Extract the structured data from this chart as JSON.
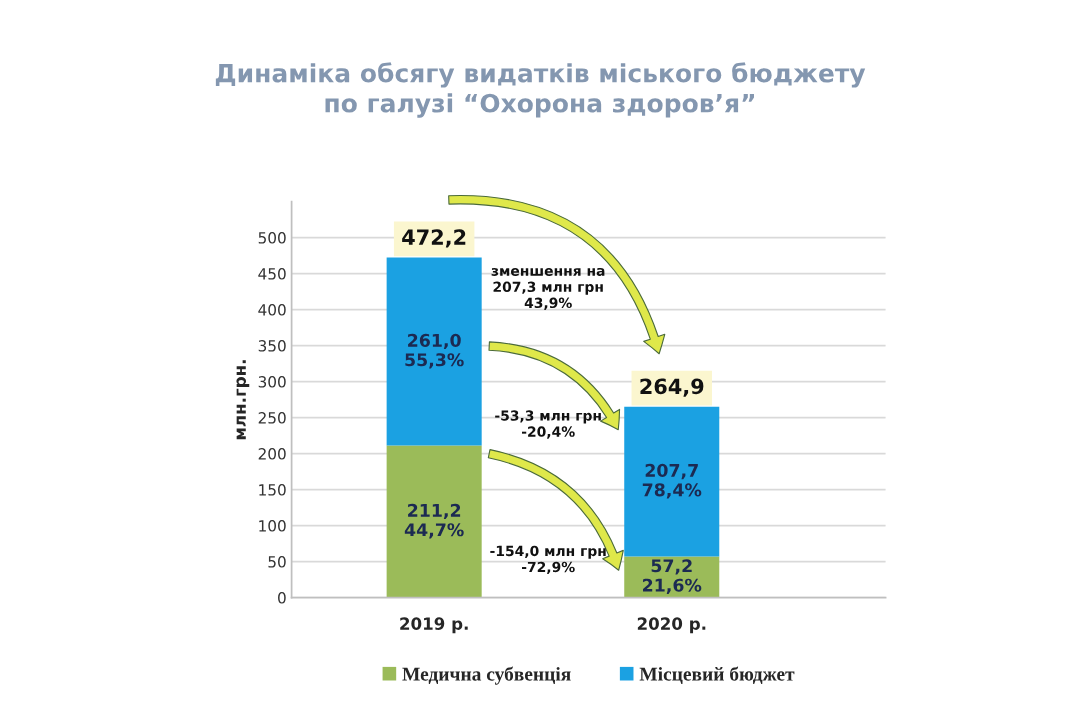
{
  "chart_data": {
    "type": "bar",
    "title": "Динаміка обсягу видатків міського бюджету\nпо галузі “Охорона здоров’я”",
    "ylabel": "млн.грн.",
    "categories": [
      "2019 р.",
      "2020 р."
    ],
    "stacked": true,
    "series": [
      {
        "name": "Медична субвенція",
        "color": "#9bbb59",
        "values": [
          211.2,
          57.2
        ],
        "value_labels": [
          "211,2\n44,7%",
          "57,2\n21,6%"
        ]
      },
      {
        "name": "Місцевий бюджет",
        "color": "#1ba1e2",
        "values": [
          261.0,
          207.7
        ],
        "value_labels": [
          "261,0\n55,3%",
          "207,7\n78,4%"
        ]
      }
    ],
    "totals": [
      "472,2",
      "264,9"
    ],
    "ylim": [
      0,
      550
    ],
    "yticks": [
      0,
      50,
      100,
      150,
      200,
      250,
      300,
      350,
      400,
      450,
      500
    ],
    "grid": "y",
    "legend": "bottom",
    "annotations": [
      "зменшення на\n207,3 млн грн\n43,9%",
      "-53,3 млн грн\n-20,4%",
      "-154,0 млн грн\n-72,9%"
    ]
  }
}
